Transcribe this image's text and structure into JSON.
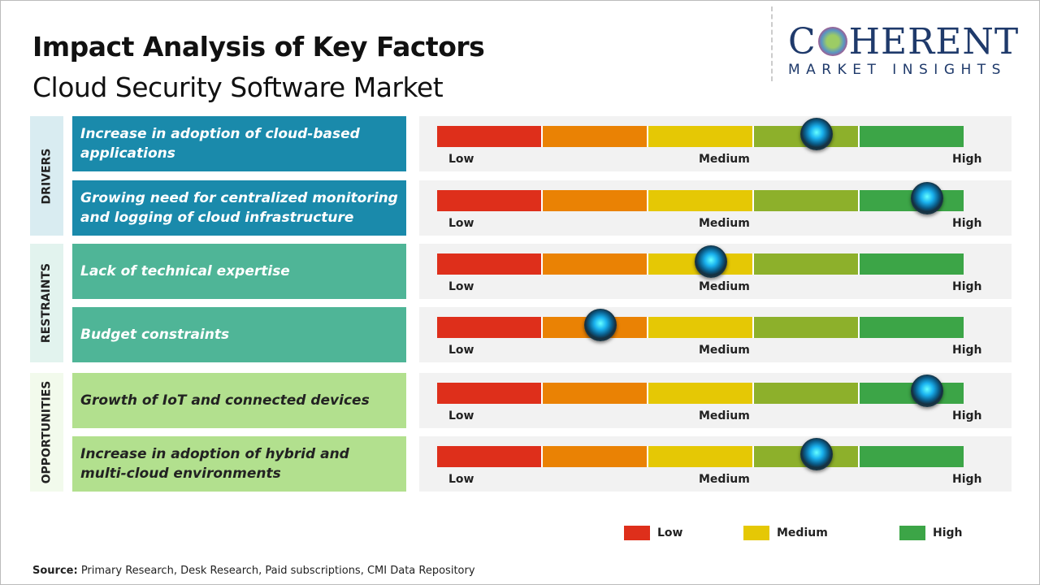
{
  "header": {
    "title": "Impact Analysis of Key Factors",
    "subtitle": "Cloud Security Software Market"
  },
  "logo": {
    "text_left": "C",
    "text_right": "HERENT",
    "tagline": "MARKET INSIGHTS"
  },
  "chart_data": {
    "type": "gauge",
    "scale": [
      "Low",
      "Medium",
      "High"
    ],
    "segment_colors": [
      "#de2f1b",
      "#ea8204",
      "#e5c805",
      "#8db02b",
      "#3ca547"
    ],
    "groups": [
      {
        "name": "DRIVERS",
        "color": "#1a8aab",
        "text_color": "#ffffff"
      },
      {
        "name": "RESTRAINTS",
        "color": "#4fb597",
        "text_color": "#ffffff"
      },
      {
        "name": "OPPORTUNITIES",
        "color": "#b2e08e",
        "text_color": "#222222"
      }
    ],
    "factors": [
      {
        "group": 0,
        "label": "Increase in adoption of cloud-based applications",
        "impact": 0.72
      },
      {
        "group": 0,
        "label": "Growing need for centralized monitoring and logging of cloud infrastructure",
        "impact": 0.93
      },
      {
        "group": 1,
        "label": "Lack of technical expertise",
        "impact": 0.52
      },
      {
        "group": 1,
        "label": "Budget constraints",
        "impact": 0.31
      },
      {
        "group": 2,
        "label": "Growth of IoT and connected devices",
        "impact": 0.93
      },
      {
        "group": 2,
        "label": "Increase in adoption of hybrid and multi-cloud environments",
        "impact": 0.72
      }
    ],
    "legend": [
      {
        "label": "Low",
        "color": "#de2f1b"
      },
      {
        "label": "Medium",
        "color": "#e5c805"
      },
      {
        "label": "High",
        "color": "#3ca547"
      }
    ]
  },
  "source": {
    "label": "Source:",
    "text": " Primary Research, Desk Research, Paid subscriptions, CMI Data Repository"
  }
}
